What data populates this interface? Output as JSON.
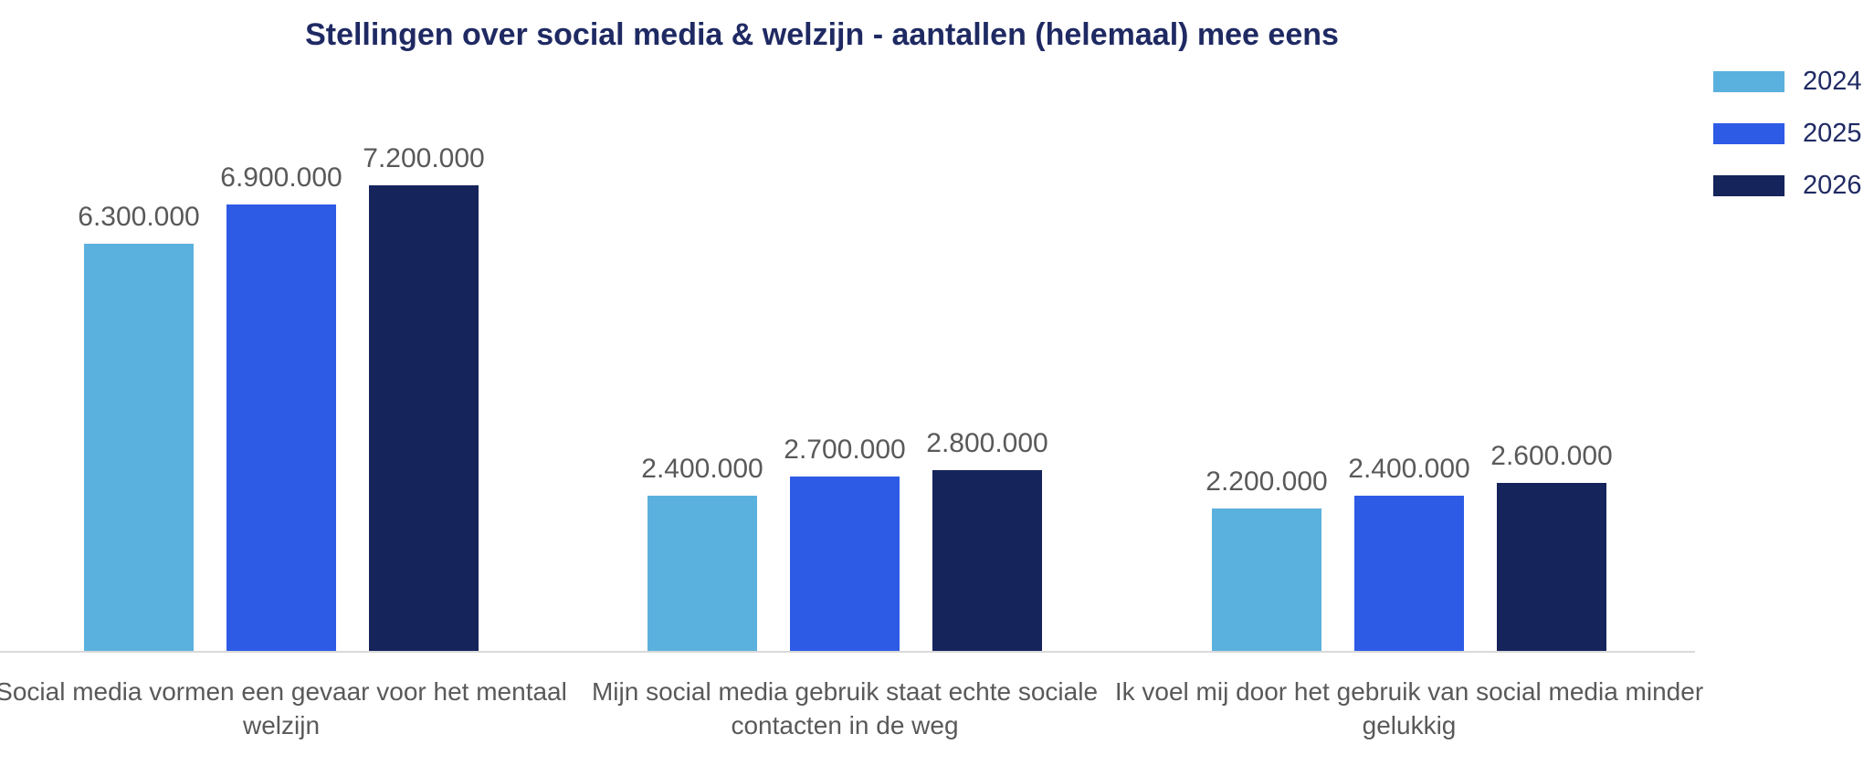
{
  "chart_data": {
    "type": "bar",
    "title": "Stellingen over social media & welzijn - aantallen (helemaal) mee eens",
    "categories": [
      "Social media vormen een gevaar voor het mentaal welzijn",
      "Mijn social media gebruik staat echte sociale contacten in de weg",
      "Ik voel mij door het gebruik van social media minder gelukkig"
    ],
    "series": [
      {
        "name": "2024",
        "color": "#5BB1DD",
        "values": [
          6300000,
          2400000,
          2200000
        ],
        "value_labels": [
          "6.300.000",
          "2.400.000",
          "2.200.000"
        ]
      },
      {
        "name": "2025",
        "color": "#2E5BE6",
        "values": [
          6900000,
          2700000,
          2400000
        ],
        "value_labels": [
          "6.900.000",
          "2.700.000",
          "2.400.000"
        ]
      },
      {
        "name": "2026",
        "color": "#16245C",
        "values": [
          7200000,
          2800000,
          2600000
        ],
        "value_labels": [
          "7.200.000",
          "2.800.000",
          "2.600.000"
        ]
      }
    ],
    "legend": {
      "position": "top-right",
      "entries": [
        "2024",
        "2025",
        "2026"
      ]
    },
    "grid": false,
    "y_axis_visible": false,
    "x_axis_line": true,
    "xlabel": "",
    "ylabel": "",
    "ylim": [
      0,
      7500000
    ]
  },
  "colors": {
    "title_text": "#1F2A63",
    "legend_text": "#1F2A63",
    "data_label_text": "#595959",
    "category_label_text": "#595959",
    "axis_line": "#D9D9D9",
    "background": "#FFFFFF",
    "series_2024": "#5BB1DD",
    "series_2025": "#2E5BE6",
    "series_2026": "#16245C"
  }
}
